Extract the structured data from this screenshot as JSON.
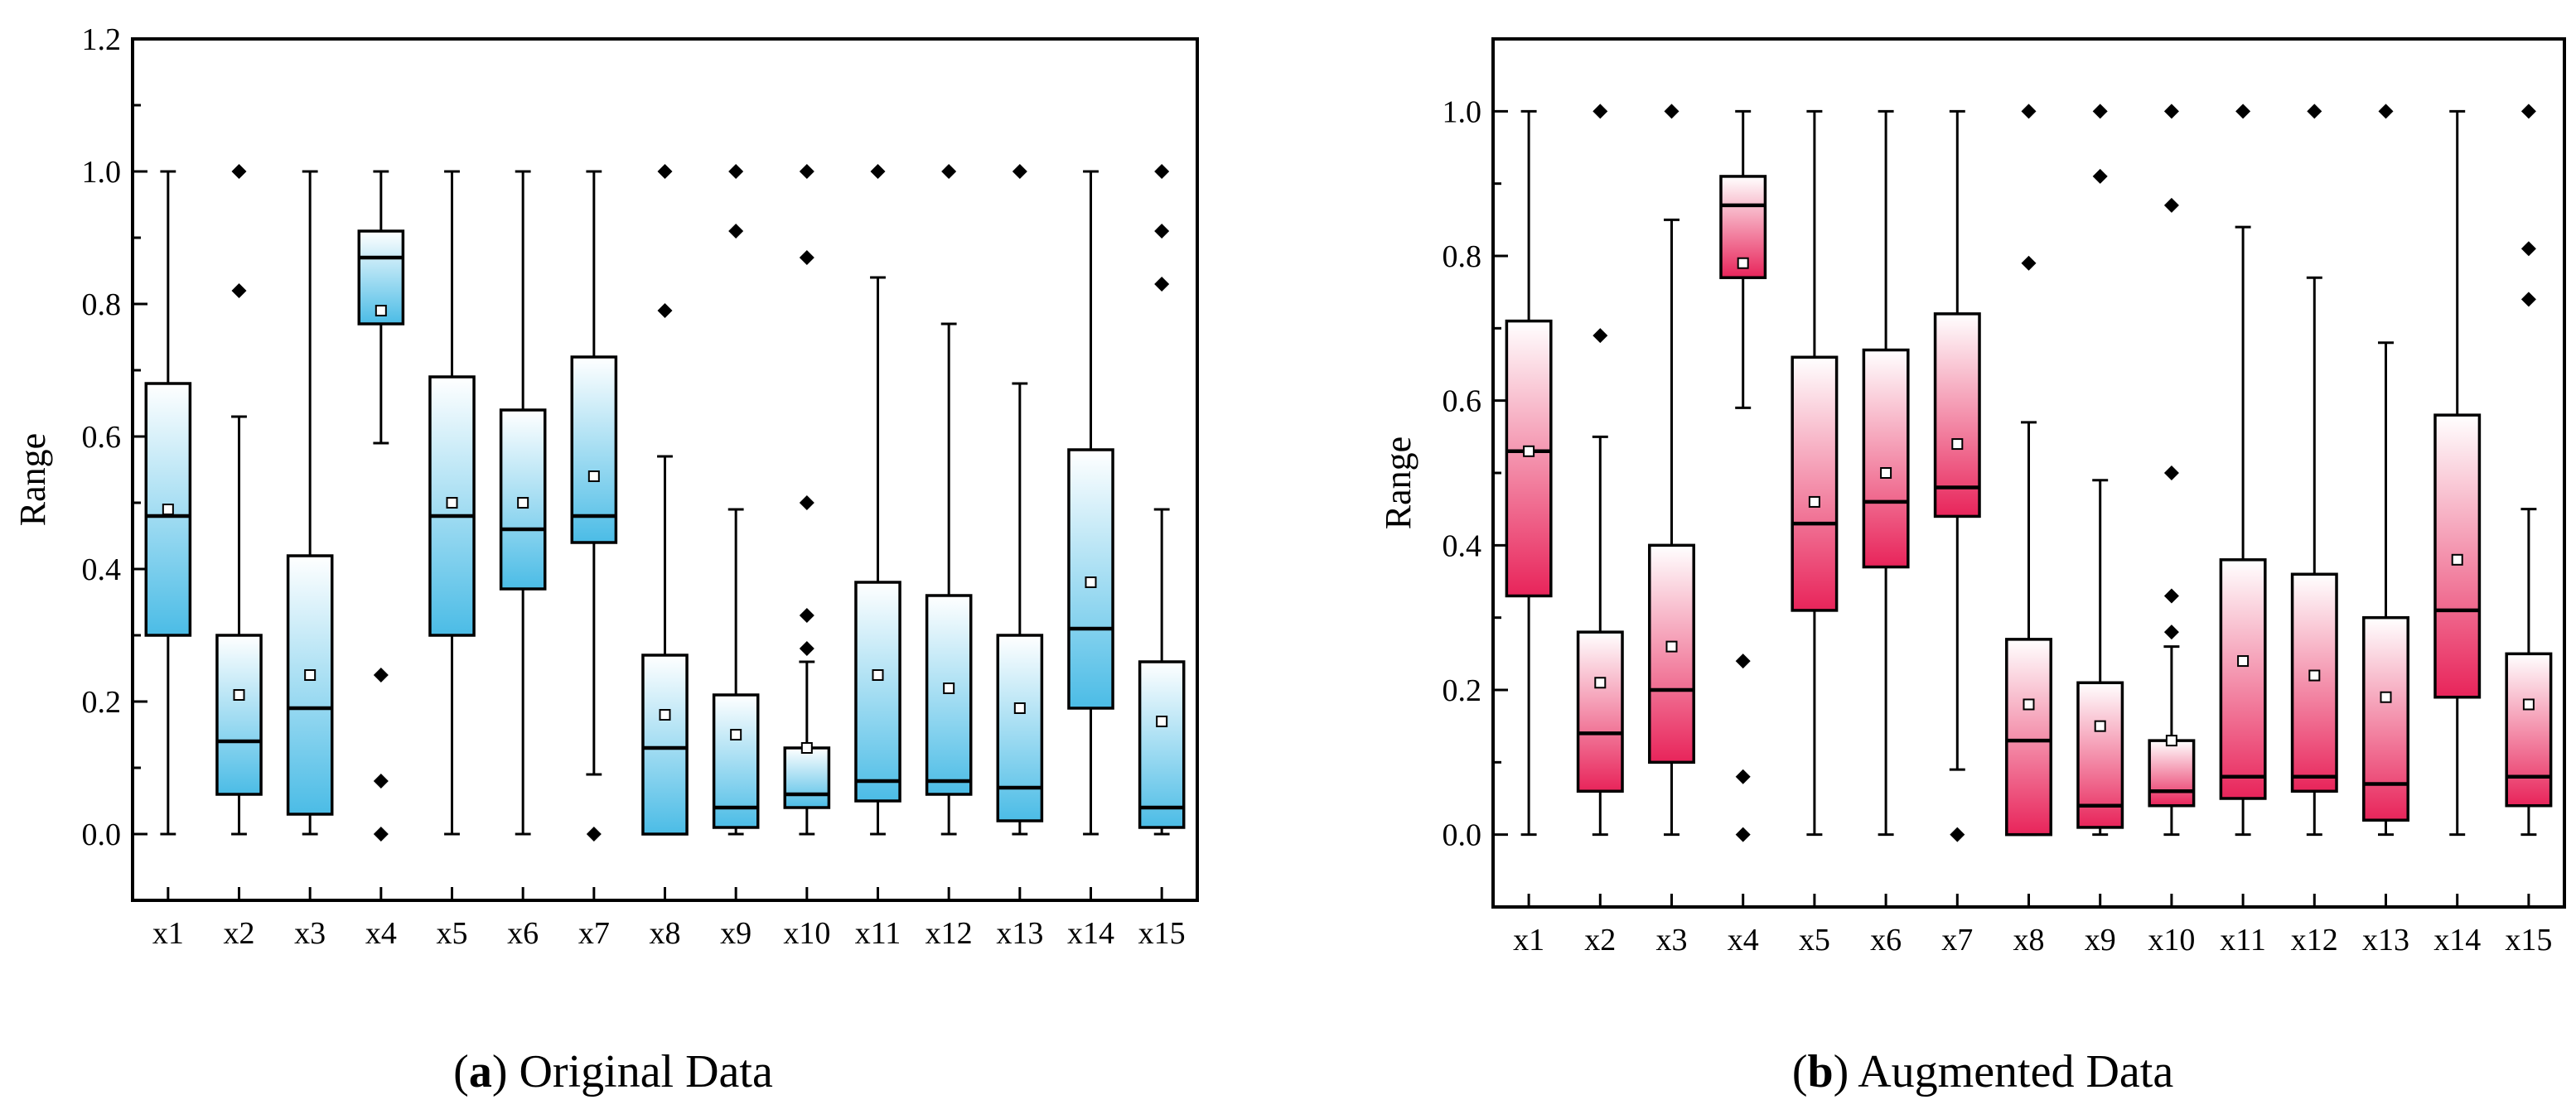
{
  "chart_data": [
    {
      "type": "box",
      "title": "Original Data",
      "caption_label": "a",
      "ylabel": "Range",
      "xlabel": "",
      "ylim": [
        -0.1,
        1.2
      ],
      "yticks": [
        "0.0",
        "0.2",
        "0.4",
        "0.6",
        "0.8",
        "1.0",
        "1.2"
      ],
      "color": "#4bbce6",
      "categories": [
        "x1",
        "x2",
        "x3",
        "x4",
        "x5",
        "x6",
        "x7",
        "x8",
        "x9",
        "x10",
        "x11",
        "x12",
        "x13",
        "x14",
        "x15"
      ],
      "boxes": [
        {
          "q1": 0.3,
          "median": 0.48,
          "q3": 0.68,
          "whisker_low": 0.0,
          "whisker_high": 1.0,
          "mean": 0.49,
          "outliers": []
        },
        {
          "q1": 0.06,
          "median": 0.14,
          "q3": 0.3,
          "whisker_low": 0.0,
          "whisker_high": 0.63,
          "mean": 0.21,
          "outliers": [
            0.82,
            1.0
          ]
        },
        {
          "q1": 0.03,
          "median": 0.19,
          "q3": 0.42,
          "whisker_low": 0.0,
          "whisker_high": 1.0,
          "mean": 0.24,
          "outliers": []
        },
        {
          "q1": 0.77,
          "median": 0.87,
          "q3": 0.91,
          "whisker_low": 0.59,
          "whisker_high": 1.0,
          "mean": 0.79,
          "outliers": [
            0.24,
            0.08,
            0.0
          ]
        },
        {
          "q1": 0.3,
          "median": 0.48,
          "q3": 0.69,
          "whisker_low": 0.0,
          "whisker_high": 1.0,
          "mean": 0.5,
          "outliers": []
        },
        {
          "q1": 0.37,
          "median": 0.46,
          "q3": 0.64,
          "whisker_low": 0.0,
          "whisker_high": 1.0,
          "mean": 0.5,
          "outliers": []
        },
        {
          "q1": 0.44,
          "median": 0.48,
          "q3": 0.72,
          "whisker_low": 0.09,
          "whisker_high": 1.0,
          "mean": 0.54,
          "outliers": [
            0.0
          ]
        },
        {
          "q1": 0.0,
          "median": 0.13,
          "q3": 0.27,
          "whisker_low": 0.0,
          "whisker_high": 0.57,
          "mean": 0.18,
          "outliers": [
            0.79,
            1.0
          ]
        },
        {
          "q1": 0.01,
          "median": 0.04,
          "q3": 0.21,
          "whisker_low": 0.0,
          "whisker_high": 0.49,
          "mean": 0.15,
          "outliers": [
            0.91,
            1.0
          ]
        },
        {
          "q1": 0.04,
          "median": 0.06,
          "q3": 0.13,
          "whisker_low": 0.0,
          "whisker_high": 0.26,
          "mean": 0.13,
          "outliers": [
            0.28,
            0.33,
            0.5,
            0.87,
            1.0
          ]
        },
        {
          "q1": 0.05,
          "median": 0.08,
          "q3": 0.38,
          "whisker_low": 0.0,
          "whisker_high": 0.84,
          "mean": 0.24,
          "outliers": [
            1.0
          ]
        },
        {
          "q1": 0.06,
          "median": 0.08,
          "q3": 0.36,
          "whisker_low": 0.0,
          "whisker_high": 0.77,
          "mean": 0.22,
          "outliers": [
            1.0
          ]
        },
        {
          "q1": 0.02,
          "median": 0.07,
          "q3": 0.3,
          "whisker_low": 0.0,
          "whisker_high": 0.68,
          "mean": 0.19,
          "outliers": [
            1.0
          ]
        },
        {
          "q1": 0.19,
          "median": 0.31,
          "q3": 0.58,
          "whisker_low": 0.0,
          "whisker_high": 1.0,
          "mean": 0.38,
          "outliers": []
        },
        {
          "q1": 0.01,
          "median": 0.04,
          "q3": 0.26,
          "whisker_low": 0.0,
          "whisker_high": 0.49,
          "mean": 0.17,
          "outliers": [
            0.83,
            0.91,
            1.0
          ]
        }
      ]
    },
    {
      "type": "box",
      "title": "Augmented Data",
      "caption_label": "b",
      "ylabel": "Range",
      "xlabel": "",
      "ylim": [
        -0.1,
        1.1
      ],
      "yticks": [
        "0.0",
        "0.2",
        "0.4",
        "0.6",
        "0.8",
        "1.0"
      ],
      "color": "#e8245a",
      "categories": [
        "x1",
        "x2",
        "x3",
        "x4",
        "x5",
        "x6",
        "x7",
        "x8",
        "x9",
        "x10",
        "x11",
        "x12",
        "x13",
        "x14",
        "x15"
      ],
      "boxes": [
        {
          "q1": 0.33,
          "median": 0.53,
          "q3": 0.71,
          "whisker_low": 0.0,
          "whisker_high": 1.0,
          "mean": 0.53,
          "outliers": []
        },
        {
          "q1": 0.06,
          "median": 0.14,
          "q3": 0.28,
          "whisker_low": 0.0,
          "whisker_high": 0.55,
          "mean": 0.21,
          "outliers": [
            0.69,
            1.0
          ]
        },
        {
          "q1": 0.1,
          "median": 0.2,
          "q3": 0.4,
          "whisker_low": 0.0,
          "whisker_high": 0.85,
          "mean": 0.26,
          "outliers": [
            1.0
          ]
        },
        {
          "q1": 0.77,
          "median": 0.87,
          "q3": 0.91,
          "whisker_low": 0.59,
          "whisker_high": 1.0,
          "mean": 0.79,
          "outliers": [
            0.24,
            0.08,
            0.0
          ]
        },
        {
          "q1": 0.31,
          "median": 0.43,
          "q3": 0.66,
          "whisker_low": 0.0,
          "whisker_high": 1.0,
          "mean": 0.46,
          "outliers": []
        },
        {
          "q1": 0.37,
          "median": 0.46,
          "q3": 0.67,
          "whisker_low": 0.0,
          "whisker_high": 1.0,
          "mean": 0.5,
          "outliers": []
        },
        {
          "q1": 0.44,
          "median": 0.48,
          "q3": 0.72,
          "whisker_low": 0.09,
          "whisker_high": 1.0,
          "mean": 0.54,
          "outliers": [
            0.0
          ]
        },
        {
          "q1": 0.0,
          "median": 0.13,
          "q3": 0.27,
          "whisker_low": 0.0,
          "whisker_high": 0.57,
          "mean": 0.18,
          "outliers": [
            0.79,
            1.0
          ]
        },
        {
          "q1": 0.01,
          "median": 0.04,
          "q3": 0.21,
          "whisker_low": 0.0,
          "whisker_high": 0.49,
          "mean": 0.15,
          "outliers": [
            0.91,
            1.0
          ]
        },
        {
          "q1": 0.04,
          "median": 0.06,
          "q3": 0.13,
          "whisker_low": 0.0,
          "whisker_high": 0.26,
          "mean": 0.13,
          "outliers": [
            0.28,
            0.33,
            0.5,
            0.87,
            1.0
          ]
        },
        {
          "q1": 0.05,
          "median": 0.08,
          "q3": 0.38,
          "whisker_low": 0.0,
          "whisker_high": 0.84,
          "mean": 0.24,
          "outliers": [
            1.0
          ]
        },
        {
          "q1": 0.06,
          "median": 0.08,
          "q3": 0.36,
          "whisker_low": 0.0,
          "whisker_high": 0.77,
          "mean": 0.22,
          "outliers": [
            1.0
          ]
        },
        {
          "q1": 0.02,
          "median": 0.07,
          "q3": 0.3,
          "whisker_low": 0.0,
          "whisker_high": 0.68,
          "mean": 0.19,
          "outliers": [
            1.0
          ]
        },
        {
          "q1": 0.19,
          "median": 0.31,
          "q3": 0.58,
          "whisker_low": 0.0,
          "whisker_high": 1.0,
          "mean": 0.38,
          "outliers": []
        },
        {
          "q1": 0.04,
          "median": 0.08,
          "q3": 0.25,
          "whisker_low": 0.0,
          "whisker_high": 0.45,
          "mean": 0.18,
          "outliers": [
            0.74,
            0.81,
            1.0
          ]
        }
      ]
    }
  ]
}
